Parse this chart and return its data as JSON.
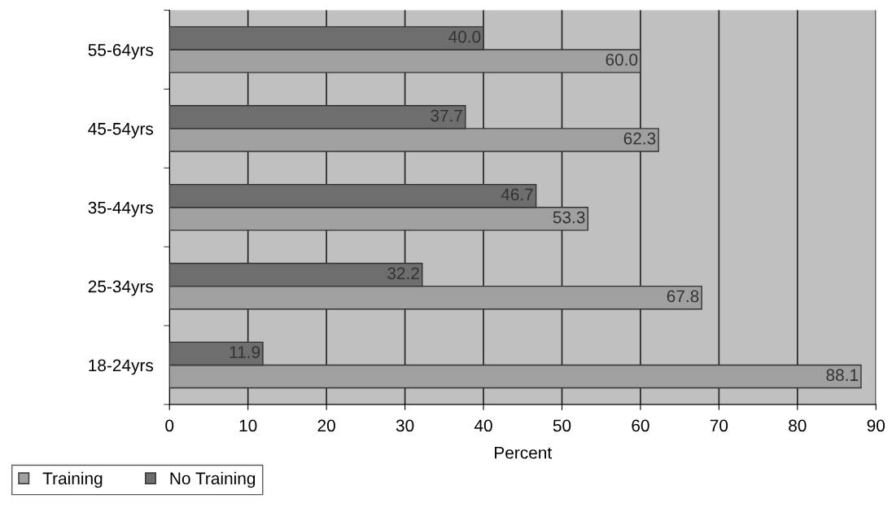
{
  "chart_data": {
    "type": "bar",
    "orientation": "horizontal",
    "xlabel": "Percent",
    "categories": [
      "55-64yrs",
      "45-54yrs",
      "35-44yrs",
      "25-34yrs",
      "18-24yrs"
    ],
    "series": [
      {
        "name": "Training",
        "color": "#a0a0a0",
        "values": [
          60.0,
          62.3,
          53.3,
          67.8,
          88.1
        ],
        "value_labels": [
          "60.0",
          "62.3",
          "53.3",
          "67.8",
          "88.1"
        ]
      },
      {
        "name": "No Training",
        "color": "#6e6e6e",
        "values": [
          40.0,
          37.7,
          46.7,
          32.2,
          11.9
        ],
        "value_labels": [
          "40.0",
          "37.7",
          "46.7",
          "32.2",
          "11.9"
        ]
      }
    ],
    "xlim": [
      0,
      90
    ],
    "xticks": [
      0,
      10,
      20,
      30,
      40,
      50,
      60,
      70,
      80,
      90
    ],
    "grid": "x",
    "legend": "bottom left"
  }
}
